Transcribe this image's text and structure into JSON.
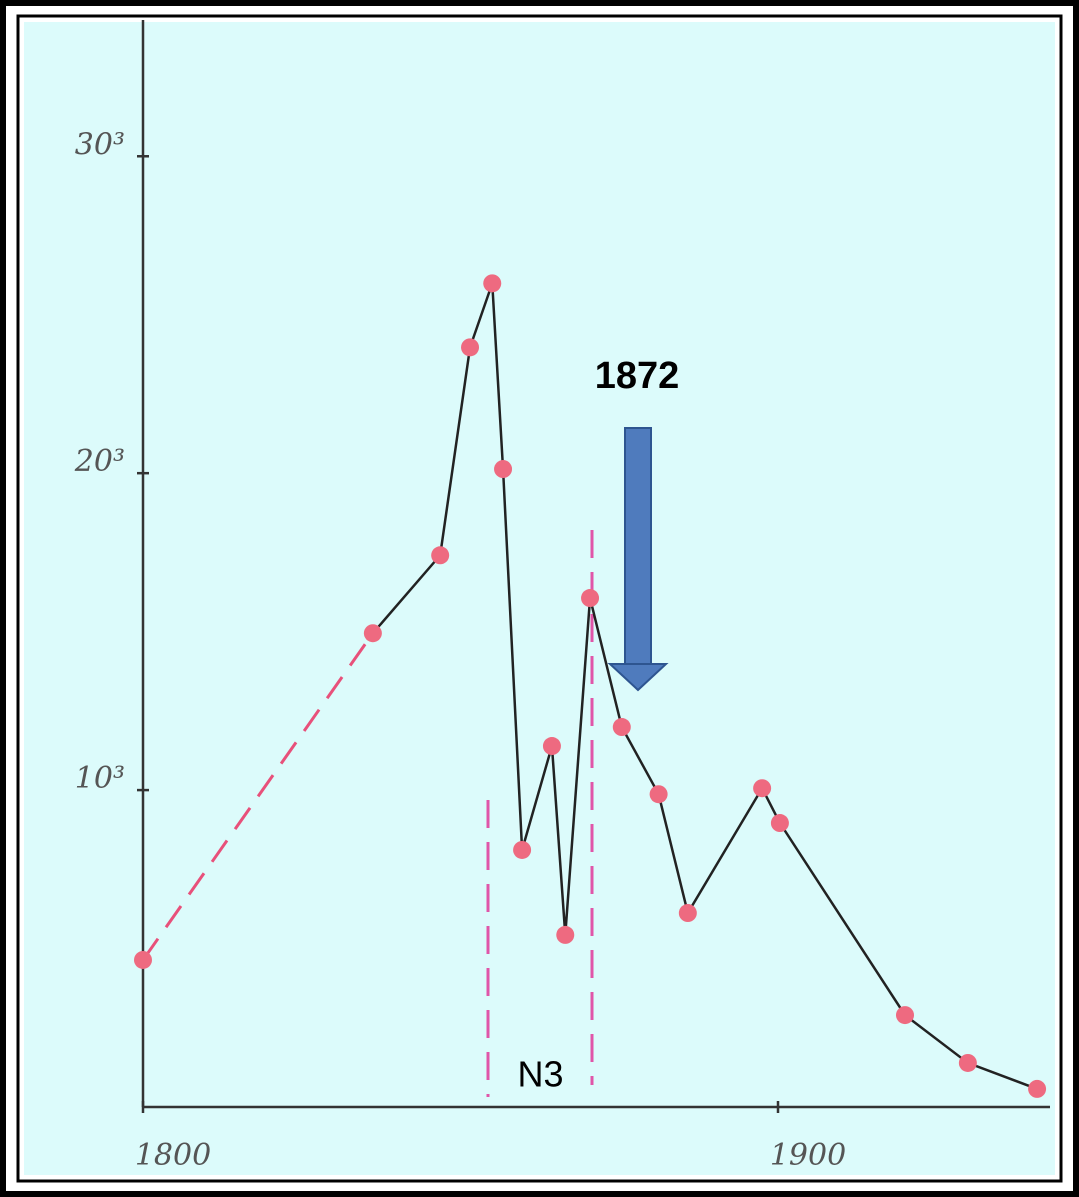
{
  "chart_data": {
    "type": "line",
    "x": [
      1800,
      1836.2,
      1846.8,
      1851.5,
      1855,
      1856.7,
      1859.7,
      1864.4,
      1866.5,
      1870.4,
      1875.4,
      1881.2,
      1885.8,
      1897.5,
      1900.3,
      1920,
      1929.9,
      1940.8
    ],
    "values": [
      464,
      1495,
      1741,
      2397,
      2599,
      2013,
      811,
      1139,
      543,
      1606,
      1199,
      987,
      612,
      1006,
      896,
      290,
      139,
      57
    ],
    "color": "#222222",
    "marker_color": "#ee6a80",
    "xlim": [
      1800,
      1945
    ],
    "ylim": [
      0,
      3430
    ],
    "xticks": [
      1800,
      1900
    ],
    "yticks": [
      {
        "value": 1000,
        "label": "10³"
      },
      {
        "value": 2000,
        "label": "20³"
      },
      {
        "value": 3000,
        "label": "30³"
      }
    ],
    "annotations": [
      {
        "text": "1872",
        "x": 1877.8
      },
      {
        "text": "N3",
        "x": 1862.6
      }
    ]
  }
}
